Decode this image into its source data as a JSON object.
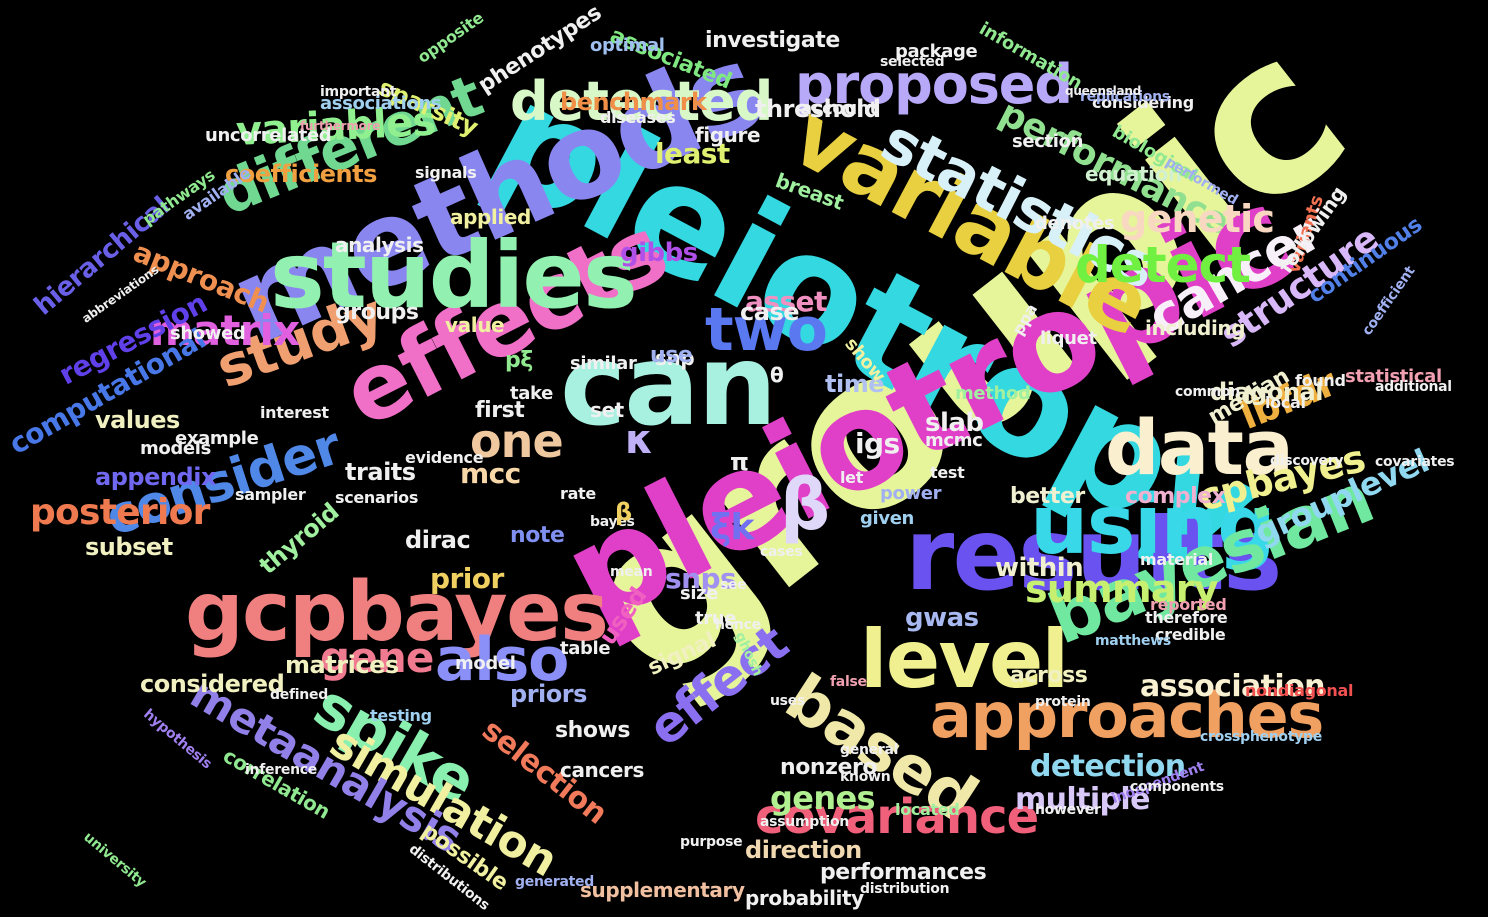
{
  "words": [
    {
      "text": "groupic",
      "color": "#e7f59a"
    },
    {
      "text": "pleiotropy",
      "color": "#34d8e0"
    },
    {
      "text": "pleiotropic",
      "color": "#e040c8"
    },
    {
      "text": "methods",
      "color": "#8a86f0"
    },
    {
      "text": "can",
      "color": "#a8f0e0"
    },
    {
      "text": "effects",
      "color": "#f070c8"
    },
    {
      "text": "results",
      "color": "#6a52f0"
    },
    {
      "text": "studies",
      "color": "#92f0b0"
    },
    {
      "text": "variable",
      "color": "#e8d040"
    },
    {
      "text": "gcpbayes",
      "color": "#f08080"
    },
    {
      "text": "using",
      "color": "#38d8e8"
    },
    {
      "text": "level",
      "color": "#f0f090"
    },
    {
      "text": "data",
      "color": "#faf0d0"
    },
    {
      "text": "bayesian",
      "color": "#70e8a0"
    },
    {
      "text": "based",
      "color": "#f0e8a8"
    },
    {
      "text": "approaches",
      "color": "#f0a060"
    },
    {
      "text": "statistics",
      "color": "#d8f0f8"
    },
    {
      "text": "proposed",
      "color": "#b8a8f8"
    },
    {
      "text": "detected",
      "color": "#d8f8c8"
    },
    {
      "text": "different",
      "color": "#70d890"
    },
    {
      "text": "two",
      "color": "#5a78f0"
    },
    {
      "text": "also",
      "color": "#8a90f8"
    },
    {
      "text": "effect",
      "color": "#8a70f0"
    },
    {
      "text": "spike",
      "color": "#8af0b0"
    },
    {
      "text": "consider",
      "color": "#5088e8"
    },
    {
      "text": "study",
      "color": "#f0a070"
    },
    {
      "text": "covariance",
      "color": "#f0607a"
    },
    {
      "text": "cancer",
      "color": "#f8f0f8"
    },
    {
      "text": "detect",
      "color": "#70f040"
    },
    {
      "text": "one",
      "color": "#f0c8a0"
    },
    {
      "text": "simulation",
      "color": "#f0f0a0"
    },
    {
      "text": "gene",
      "color": "#f07a90"
    },
    {
      "text": "metaanalysis",
      "color": "#9080e8"
    },
    {
      "text": "matrix",
      "color": "#e060e0"
    },
    {
      "text": "variables",
      "color": "#90f090"
    },
    {
      "text": "performance",
      "color": "#90e090"
    },
    {
      "text": "genetic",
      "color": "#f8d8c0"
    },
    {
      "text": "summary",
      "color": "#c8f070"
    },
    {
      "text": "lbfdr",
      "color": "#f0b040"
    },
    {
      "text": "cpbayes",
      "color": "#f0f090"
    },
    {
      "text": "posterior",
      "color": "#f07a50"
    },
    {
      "text": "structure",
      "color": "#d8b8f8"
    },
    {
      "text": "grouplevel",
      "color": "#90d8f0"
    },
    {
      "text": "association",
      "color": "#f8f0d0"
    },
    {
      "text": "detection",
      "color": "#90d8f0"
    },
    {
      "text": "genes",
      "color": "#b0f090"
    },
    {
      "text": "multiple",
      "color": "#d8c8f8"
    },
    {
      "text": "selection",
      "color": "#f07a5a"
    },
    {
      "text": "prior",
      "color": "#f0d060"
    },
    {
      "text": "approach",
      "color": "#f09050"
    },
    {
      "text": "regression",
      "color": "#6040e8"
    },
    {
      "text": "computational",
      "color": "#4878e8"
    },
    {
      "text": "hierarchical",
      "color": "#6a60e8"
    },
    {
      "text": "appendix",
      "color": "#7068f0"
    },
    {
      "text": "coefficients",
      "color": "#f0a040"
    },
    {
      "text": "least",
      "color": "#e0f070"
    },
    {
      "text": "asset",
      "color": "#f090c0"
    },
    {
      "text": "mcc",
      "color": "#f8d8a8"
    },
    {
      "text": "snps",
      "color": "#a090f0"
    },
    {
      "text": "igs",
      "color": "#f0f0f0"
    },
    {
      "text": "gibbs",
      "color": "#b050e8"
    },
    {
      "text": "slab",
      "color": "#f0f0f0"
    },
    {
      "text": "traits",
      "color": "#f0f0f0"
    },
    {
      "text": "threshold",
      "color": "#f0f0f0"
    },
    {
      "text": "benchmark",
      "color": "#f09048"
    },
    {
      "text": "sparsity",
      "color": "#e0f070"
    },
    {
      "text": "phenotypes",
      "color": "#f0f0f0"
    },
    {
      "text": "investigate",
      "color": "#f0f0f0"
    },
    {
      "text": "associated",
      "color": "#80e880"
    },
    {
      "text": "used",
      "color": "#f060c0"
    },
    {
      "text": "within",
      "color": "#f0f0d0"
    },
    {
      "text": "diagonal",
      "color": "#f0f0d0"
    },
    {
      "text": "continuous",
      "color": "#5080e8"
    },
    {
      "text": "variants",
      "color": "#f07050"
    },
    {
      "text": "gwas",
      "color": "#a8b8f0"
    },
    {
      "text": "across",
      "color": "#f0f0c0"
    },
    {
      "text": "dirac",
      "color": "#f0f0f0"
    },
    {
      "text": "thyroid",
      "color": "#a0f0a0"
    },
    {
      "text": "values",
      "color": "#f0f0c0"
    },
    {
      "text": "subset",
      "color": "#f0f0c0"
    },
    {
      "text": "matrices",
      "color": "#f0f0c0"
    },
    {
      "text": "considered",
      "color": "#f0f0c0"
    },
    {
      "text": "signal",
      "color": "#f0f0c0"
    },
    {
      "text": "priors",
      "color": "#a0b0f0"
    },
    {
      "text": "direction",
      "color": "#f0d8b0"
    },
    {
      "text": "performances",
      "color": "#f0f0f0"
    },
    {
      "text": "supplementary",
      "color": "#f0c0a0"
    },
    {
      "text": "probability",
      "color": "#f0f0f0"
    },
    {
      "text": "possible",
      "color": "#f0f0a0"
    },
    {
      "text": "correlation",
      "color": "#90e890"
    },
    {
      "text": "median",
      "color": "#f0f0d0"
    },
    {
      "text": "better",
      "color": "#f0f0d0"
    },
    {
      "text": "complex",
      "color": "#f0b0d0"
    },
    {
      "text": "nonzero",
      "color": "#f0f0f0"
    },
    {
      "text": "shows",
      "color": "#f0f0f0"
    },
    {
      "text": "cancers",
      "color": "#f0f0f0"
    },
    {
      "text": "first",
      "color": "#f0f0f0"
    },
    {
      "text": "note",
      "color": "#8090f0"
    },
    {
      "text": "groups",
      "color": "#f0f0f0"
    },
    {
      "text": "case",
      "color": "#f0f0f0"
    },
    {
      "text": "time",
      "color": "#b0c0f0"
    },
    {
      "text": "snp",
      "color": "#f0f0f0"
    },
    {
      "text": "use",
      "color": "#a0b0f0"
    },
    {
      "text": "value",
      "color": "#f0f0a0"
    },
    {
      "text": "analysis",
      "color": "#f0f0f0"
    },
    {
      "text": "applied",
      "color": "#f0f0a0"
    },
    {
      "text": "breast",
      "color": "#a0f0a0"
    },
    {
      "text": "equation",
      "color": "#d0f0d0"
    },
    {
      "text": "including",
      "color": "#f0f0d0"
    },
    {
      "text": "following",
      "color": "#f0f0f0"
    },
    {
      "text": "figure",
      "color": "#f0f0f0"
    },
    {
      "text": "account",
      "color": "#f0f0f0"
    },
    {
      "text": "package",
      "color": "#f0f0f0"
    },
    {
      "text": "optimal",
      "color": "#a0c0f0"
    },
    {
      "text": "opposite",
      "color": "#90e890"
    },
    {
      "text": "associations",
      "color": "#a0d0f0"
    },
    {
      "text": "uncorrelated",
      "color": "#f0f0f0"
    },
    {
      "text": "biological",
      "color": "#90e890"
    },
    {
      "text": "information",
      "color": "#90e890"
    },
    {
      "text": "considering",
      "color": "#f0f0f0"
    },
    {
      "text": "section",
      "color": "#f0f0f0"
    },
    {
      "text": "denotes",
      "color": "#f0f0f0"
    },
    {
      "text": "method",
      "color": "#a0f0a0"
    },
    {
      "text": "statistical",
      "color": "#f0a0b0"
    },
    {
      "text": "found",
      "color": "#f0f0f0"
    },
    {
      "text": "local",
      "color": "#f0f0f0"
    },
    {
      "text": "mcmc",
      "color": "#f0f0f0"
    },
    {
      "text": "power",
      "color": "#a0b0f0"
    },
    {
      "text": "test",
      "color": "#f0f0f0"
    },
    {
      "text": "given",
      "color": "#a0d0f0"
    },
    {
      "text": "set",
      "color": "#f0f0f0"
    },
    {
      "text": "similar",
      "color": "#f0f0f0"
    },
    {
      "text": "take",
      "color": "#f0f0f0"
    },
    {
      "text": "ppa",
      "color": "#f0f0f0"
    },
    {
      "text": "liquet",
      "color": "#f0f0f0"
    },
    {
      "text": "show",
      "color": "#f0f0a0"
    },
    {
      "text": "true",
      "color": "#f0f0f0"
    },
    {
      "text": "size",
      "color": "#f0f0f0"
    },
    {
      "text": "table",
      "color": "#f0f0f0"
    },
    {
      "text": "model",
      "color": "#f0f0f0"
    },
    {
      "text": "models",
      "color": "#f0f0f0"
    },
    {
      "text": "example",
      "color": "#f0f0f0"
    },
    {
      "text": "evidence",
      "color": "#f0f0f0"
    },
    {
      "text": "interest",
      "color": "#f0f0f0"
    },
    {
      "text": "showed",
      "color": "#f0f0f0"
    },
    {
      "text": "available",
      "color": "#a0b0f0"
    },
    {
      "text": "pathways",
      "color": "#90e890"
    },
    {
      "text": "signals",
      "color": "#f0f0f0"
    },
    {
      "text": "diseases",
      "color": "#f0f0f0"
    },
    {
      "text": "sampler",
      "color": "#f0f0f0"
    },
    {
      "text": "scenarios",
      "color": "#f0f0f0"
    },
    {
      "text": "rate",
      "color": "#f0f0f0"
    },
    {
      "text": "bayes",
      "color": "#f0f0f0"
    },
    {
      "text": "reported",
      "color": "#f0a0b0"
    },
    {
      "text": "credible",
      "color": "#f0f0f0"
    },
    {
      "text": "nondiagonal",
      "color": "#f05050"
    },
    {
      "text": "therefore",
      "color": "#f0f0f0"
    },
    {
      "text": "material",
      "color": "#f0f0f0"
    },
    {
      "text": "matthews",
      "color": "#a0d0f0"
    },
    {
      "text": "uses",
      "color": "#f0f0f0"
    },
    {
      "text": "general",
      "color": "#f0f0f0"
    },
    {
      "text": "protein",
      "color": "#f0f0f0"
    },
    {
      "text": "testing",
      "color": "#a0d0f0"
    },
    {
      "text": "defined",
      "color": "#f0f0f0"
    },
    {
      "text": "known",
      "color": "#f0f0f0"
    },
    {
      "text": "false",
      "color": "#f0a0b0"
    },
    {
      "text": "located",
      "color": "#a0f0a0"
    },
    {
      "text": "however",
      "color": "#f0f0f0"
    },
    {
      "text": "distribution",
      "color": "#f0f0f0"
    },
    {
      "text": "crossphenotype",
      "color": "#a0d0f0"
    },
    {
      "text": "discovery",
      "color": "#f0f0f0"
    },
    {
      "text": "covariates",
      "color": "#f0f0f0"
    },
    {
      "text": "additional",
      "color": "#f0f0f0"
    },
    {
      "text": "coefficient",
      "color": "#a0b0f0"
    },
    {
      "text": "common",
      "color": "#f0f0f0"
    },
    {
      "text": "independent",
      "color": "#a080f0"
    },
    {
      "text": "components",
      "color": "#f0f0f0"
    },
    {
      "text": "university",
      "color": "#90e890"
    },
    {
      "text": "hypothesis",
      "color": "#a080f0"
    },
    {
      "text": "inference",
      "color": "#f0f0f0"
    },
    {
      "text": "distributions",
      "color": "#f0f0f0"
    },
    {
      "text": "generated",
      "color": "#a0b0f0"
    },
    {
      "text": "purpose",
      "color": "#f0f0f0"
    },
    {
      "text": "assumption",
      "color": "#f0f0f0"
    },
    {
      "text": "selected",
      "color": "#f0f0f0"
    },
    {
      "text": "replications",
      "color": "#a0b0f0"
    },
    {
      "text": "performed",
      "color": "#a0b0f0"
    },
    {
      "text": "important",
      "color": "#f0f0f0"
    },
    {
      "text": "queensland",
      "color": "#f0f0f0"
    },
    {
      "text": "abbreviations",
      "color": "#f0f0f0"
    },
    {
      "text": "furthermore",
      "color": "#f0a0b0"
    },
    {
      "text": "ghosh",
      "color": "#a0f0a0"
    },
    {
      "text": "hence",
      "color": "#f0f0f0"
    },
    {
      "text": "mean",
      "color": "#f0f0f0"
    },
    {
      "text": "cases",
      "color": "#f0f0f0"
    },
    {
      "text": "see",
      "color": "#f0f0f0"
    },
    {
      "text": "let",
      "color": "#f0f0f0"
    },
    {
      "text": "β",
      "color": "#e0d8f8"
    },
    {
      "text": "κ",
      "color": "#c0b0f8"
    },
    {
      "text": "ξk",
      "color": "#7070f0"
    },
    {
      "text": "π",
      "color": "#f0f0f0"
    },
    {
      "text": "θ",
      "color": "#f0f0f0"
    },
    {
      "text": "β",
      "color": "#f0d060"
    },
    {
      "text": "pξ",
      "color": "#90e890"
    }
  ]
}
